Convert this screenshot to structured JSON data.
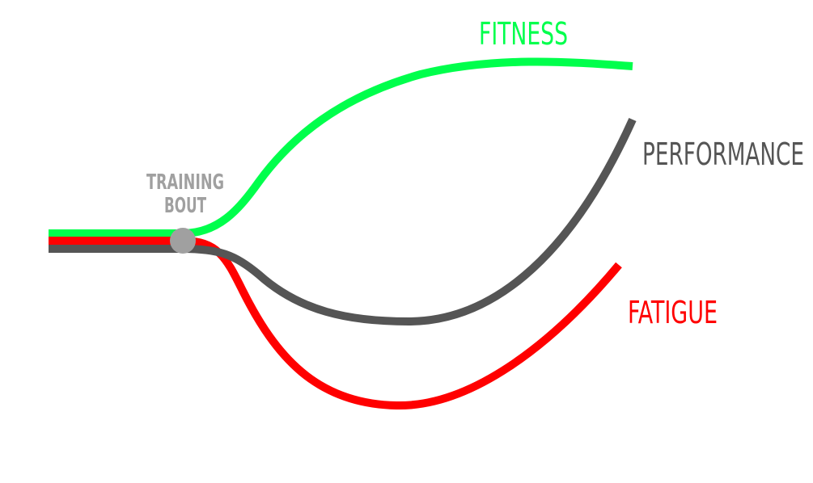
{
  "labels": {
    "fitness": "FITNESS",
    "performance": "PERFORMANCE",
    "fatigue": "FATIGUE",
    "training_bout_line1": "TRAINING",
    "training_bout_line2": "BOUT"
  },
  "colors": {
    "fitness": "#00ff4c",
    "fatigue": "#ff0000",
    "performance": "#555555",
    "training_bout": "#a0a0a0",
    "background": "#ffffff"
  }
}
